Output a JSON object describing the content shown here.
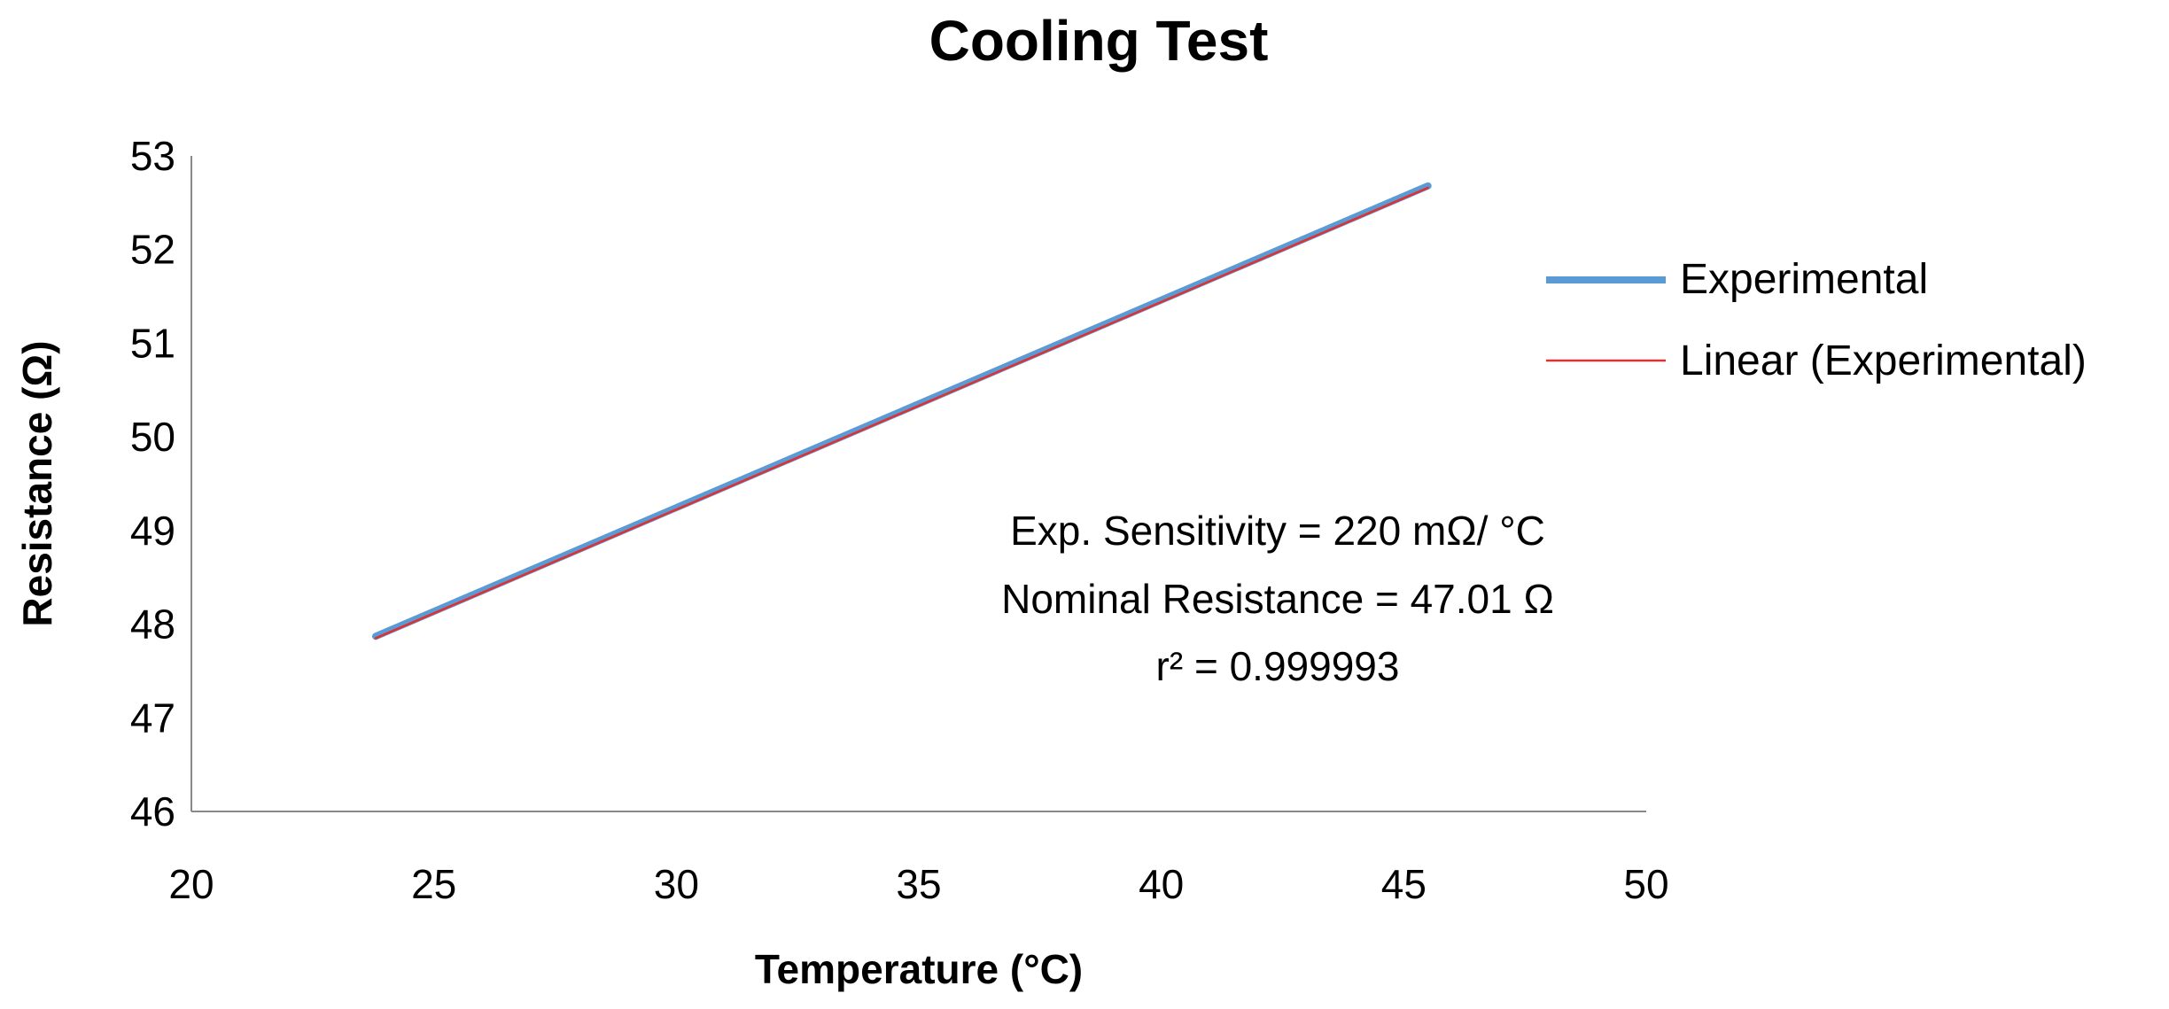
{
  "chart_data": {
    "type": "line",
    "title": "Cooling Test",
    "xlabel": "Temperature  (°C)",
    "ylabel": "Resistance  (Ω)",
    "xlim": [
      20,
      50
    ],
    "ylim": [
      46,
      53
    ],
    "xticks": [
      "20",
      "25",
      "30",
      "35",
      "40",
      "45",
      "50"
    ],
    "yticks": [
      "46",
      "47",
      "48",
      "49",
      "50",
      "51",
      "52",
      "53"
    ],
    "grid": false,
    "legend_position": "right",
    "series": [
      {
        "name": "Experimental",
        "color": "#5b9bd5",
        "x": [
          23.8,
          45.5
        ],
        "y": [
          47.87,
          52.68
        ]
      },
      {
        "name": "Linear (Experimental)",
        "color": "#e03030",
        "x": [
          23.8,
          45.5
        ],
        "y": [
          47.85,
          52.66
        ]
      }
    ],
    "annotations": [
      "Exp. Sensitivity = 220 mΩ/ °C",
      "Nominal Resistance = 47.01 Ω",
      "r² = 0.999993"
    ]
  }
}
